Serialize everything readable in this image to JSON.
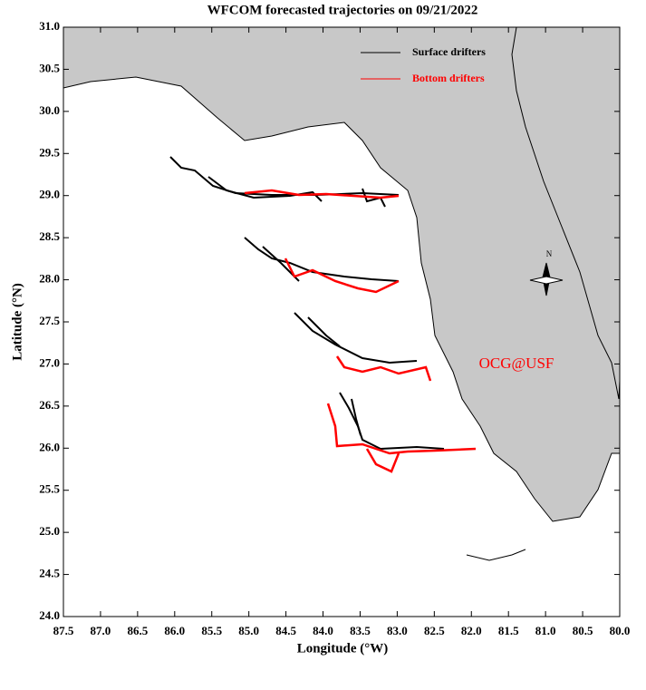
{
  "chart_data": {
    "type": "map",
    "title": "WFCOM forecasted trajectories on 09/21/2022",
    "x_label": "Longitude (°W)",
    "y_label": "Latitude (°N)",
    "xlim": [
      87.5,
      80.0
    ],
    "ylim": [
      24.0,
      31.0
    ],
    "xticks": [
      {
        "value": 87.5,
        "label": "87.5"
      },
      {
        "value": 87,
        "label": "87.0"
      },
      {
        "value": 86.5,
        "label": "86.5"
      },
      {
        "value": 86,
        "label": "86.0"
      },
      {
        "value": 85.5,
        "label": "85.5"
      },
      {
        "value": 85,
        "label": "85.0"
      },
      {
        "value": 84.5,
        "label": "84.5"
      },
      {
        "value": 84,
        "label": "84.0"
      },
      {
        "value": 83.5,
        "label": "83.5"
      },
      {
        "value": 83,
        "label": "83.0"
      },
      {
        "value": 82.5,
        "label": "82.5"
      },
      {
        "value": 82,
        "label": "82.0"
      },
      {
        "value": 81.5,
        "label": "81.5"
      },
      {
        "value": 81,
        "label": "81.0"
      },
      {
        "value": 80.5,
        "label": "80.5"
      },
      {
        "value": 80,
        "label": "80.0"
      }
    ],
    "yticks": [
      {
        "value": 24,
        "label": "24.0"
      },
      {
        "value": 24.5,
        "label": "24.5"
      },
      {
        "value": 25,
        "label": "25.0"
      },
      {
        "value": 25.5,
        "label": "25.5"
      },
      {
        "value": 26,
        "label": "26.0"
      },
      {
        "value": 26.5,
        "label": "26.5"
      },
      {
        "value": 27,
        "label": "27.0"
      },
      {
        "value": 27.5,
        "label": "27.5"
      },
      {
        "value": 28,
        "label": "28.0"
      },
      {
        "value": 28.5,
        "label": "28.5"
      },
      {
        "value": 29,
        "label": "29.0"
      },
      {
        "value": 29.5,
        "label": "29.5"
      },
      {
        "value": 30,
        "label": "30.0"
      },
      {
        "value": 30.5,
        "label": "30.5"
      },
      {
        "value": 31,
        "label": "31.0"
      }
    ],
    "series": [
      {
        "name": "Surface drifters",
        "color": "#000000"
      },
      {
        "name": "Bottom drifters",
        "color": "#ff0000"
      }
    ],
    "annotation": "OCG@USF",
    "compass_label": "N"
  }
}
